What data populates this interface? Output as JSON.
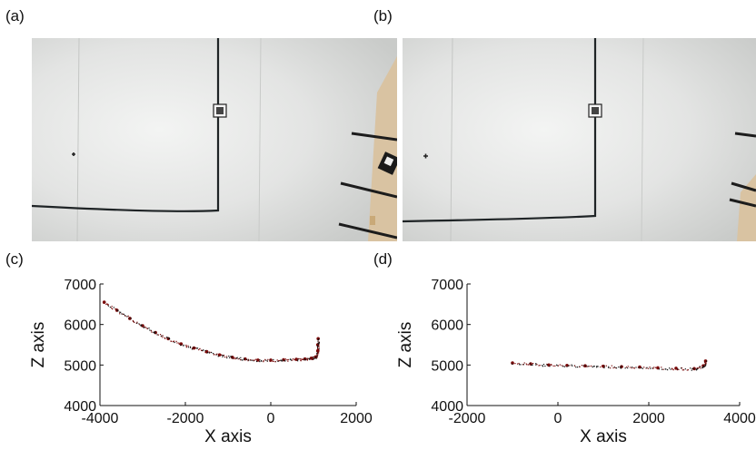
{
  "panels": {
    "a": {
      "label": "(a)"
    },
    "b": {
      "label": "(b)"
    },
    "c": {
      "label": "(c)"
    },
    "d": {
      "label": "(d)"
    }
  },
  "colors": {
    "points": "#7a0a0a",
    "ink": "#111111",
    "wall": "#e6e7e6"
  },
  "chart_data": [
    {
      "type": "scatter",
      "panel": "(c)",
      "xlabel": "X axis",
      "ylabel": "Z axis",
      "xlim": [
        -4000,
        2000
      ],
      "ylim": [
        4000,
        7000
      ],
      "xticks": [
        -4000,
        -2000,
        0,
        2000
      ],
      "yticks": [
        4000,
        5000,
        6000,
        7000
      ],
      "xtick_labels": [
        "-4000",
        "-2000",
        "0",
        "2000"
      ],
      "ytick_labels": [
        "4000",
        "5000",
        "6000",
        "7000"
      ],
      "grid": false,
      "x": [
        -3900,
        -3600,
        -3300,
        -3000,
        -2700,
        -2400,
        -2100,
        -1800,
        -1500,
        -1200,
        -900,
        -600,
        -300,
        0,
        300,
        600,
        800,
        950,
        1050,
        1100,
        1100,
        1110
      ],
      "y": [
        6550,
        6350,
        6150,
        5970,
        5800,
        5650,
        5520,
        5420,
        5330,
        5250,
        5190,
        5150,
        5120,
        5120,
        5130,
        5140,
        5150,
        5170,
        5200,
        5350,
        5500,
        5650
      ]
    },
    {
      "type": "scatter",
      "panel": "(d)",
      "xlabel": "X axis",
      "ylabel": "Z axis",
      "xlim": [
        -2000,
        4000
      ],
      "ylim": [
        4000,
        7000
      ],
      "xticks": [
        -2000,
        0,
        2000,
        4000
      ],
      "yticks": [
        4000,
        5000,
        6000,
        7000
      ],
      "xtick_labels": [
        "-2000",
        "0",
        "2000",
        "4000"
      ],
      "ytick_labels": [
        "4000",
        "5000",
        "6000",
        "7000"
      ],
      "grid": false,
      "x": [
        -1000,
        -600,
        -200,
        200,
        600,
        1000,
        1400,
        1800,
        2200,
        2600,
        3000,
        3200,
        3250
      ],
      "y": [
        5050,
        5030,
        5000,
        4990,
        4980,
        4970,
        4960,
        4950,
        4930,
        4920,
        4910,
        4980,
        5100
      ]
    }
  ]
}
